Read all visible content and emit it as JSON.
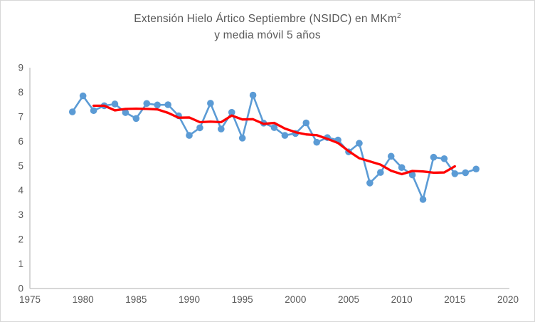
{
  "title": {
    "line1_main": "Extensión Hielo Ártico Septiembre (NSIDC) en MKm",
    "line1_sup": "2",
    "line2": "y media móvil 5 años"
  },
  "colors": {
    "series_blue": "#5B9BD5",
    "moving_average_red": "#FF0000",
    "axis_line": "#BFBFBF",
    "tick_text": "#595959",
    "title_text": "#595959",
    "canvas_border": "#D7D7D7",
    "background": "#FFFFFF"
  },
  "chart_data": {
    "type": "line",
    "title": "Extensión Hielo Ártico Septiembre (NSIDC) en MKm2 y media móvil 5 años",
    "xlabel": "",
    "ylabel": "",
    "xlim": [
      1975,
      2020
    ],
    "ylim": [
      0,
      9
    ],
    "x_ticks": [
      1975,
      1980,
      1985,
      1990,
      1995,
      2000,
      2005,
      2010,
      2015,
      2020
    ],
    "y_ticks": [
      0,
      1,
      2,
      3,
      4,
      5,
      6,
      7,
      8,
      9
    ],
    "grid": false,
    "legend_position": "none",
    "series": [
      {
        "name": "Extensión hielo ártico septiembre (MKm2)",
        "style": "line+markers",
        "color": "#5B9BD5",
        "x": [
          1979,
          1980,
          1981,
          1982,
          1983,
          1984,
          1985,
          1986,
          1987,
          1988,
          1989,
          1990,
          1991,
          1992,
          1993,
          1994,
          1995,
          1996,
          1997,
          1998,
          1999,
          2000,
          2001,
          2002,
          2003,
          2004,
          2005,
          2006,
          2007,
          2008,
          2009,
          2010,
          2011,
          2012,
          2013,
          2014,
          2015,
          2016,
          2017
        ],
        "y": [
          7.2,
          7.85,
          7.25,
          7.45,
          7.52,
          7.17,
          6.93,
          7.54,
          7.48,
          7.49,
          7.04,
          6.24,
          6.55,
          7.55,
          6.5,
          7.18,
          6.13,
          7.88,
          6.74,
          6.56,
          6.24,
          6.32,
          6.75,
          5.96,
          6.15,
          6.05,
          5.57,
          5.92,
          4.3,
          4.73,
          5.39,
          4.93,
          4.63,
          3.63,
          5.35,
          5.29,
          4.68,
          4.72,
          4.87
        ]
      },
      {
        "name": "Media móvil 5 años",
        "style": "line",
        "color": "#FF0000",
        "x": [
          1981,
          1982,
          1983,
          1984,
          1985,
          1986,
          1987,
          1988,
          1989,
          1990,
          1991,
          1992,
          1993,
          1994,
          1995,
          1996,
          1997,
          1998,
          1999,
          2000,
          2001,
          2002,
          2003,
          2004,
          2005,
          2006,
          2007,
          2008,
          2009,
          2010,
          2011,
          2012,
          2013,
          2014,
          2015
        ],
        "y": [
          7.45,
          7.45,
          7.26,
          7.32,
          7.33,
          7.32,
          7.3,
          7.16,
          6.96,
          6.97,
          6.78,
          6.8,
          6.78,
          7.05,
          6.89,
          6.9,
          6.71,
          6.75,
          6.52,
          6.37,
          6.28,
          6.25,
          6.1,
          5.93,
          5.6,
          5.31,
          5.18,
          5.05,
          4.8,
          4.66,
          4.79,
          4.77,
          4.72,
          4.73,
          4.98
        ]
      }
    ]
  }
}
